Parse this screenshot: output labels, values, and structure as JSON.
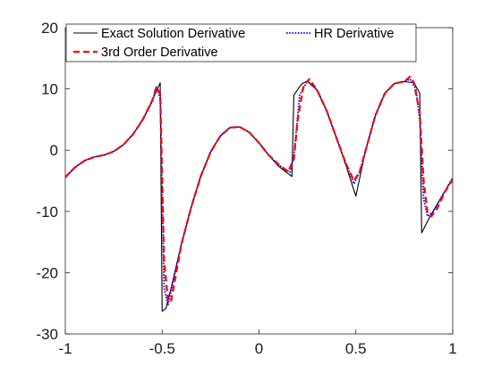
{
  "chart_data": {
    "type": "line",
    "xlim": [
      -1,
      1
    ],
    "ylim": [
      -30,
      20
    ],
    "x_ticks": [
      -1,
      -0.5,
      0,
      0.5,
      1
    ],
    "x_tick_labels": [
      "-1",
      "-0.5",
      "0",
      "0.5",
      "1"
    ],
    "y_ticks": [
      -30,
      -20,
      -10,
      0,
      10,
      20
    ],
    "y_tick_labels": [
      "-30",
      "-20",
      "-10",
      "0",
      "10",
      "20"
    ],
    "grid": false,
    "legend_position": "top",
    "series": [
      {
        "name": "Exact Solution Derivative",
        "color": "#000000",
        "style": "solid",
        "points": [
          [
            -1,
            -4.5
          ],
          [
            -0.95,
            -2.8
          ],
          [
            -0.9,
            -1.7
          ],
          [
            -0.85,
            -1.1
          ],
          [
            -0.8,
            -0.8
          ],
          [
            -0.75,
            -0.2
          ],
          [
            -0.7,
            0.9
          ],
          [
            -0.65,
            2.6
          ],
          [
            -0.6,
            5.0
          ],
          [
            -0.55,
            8.2
          ],
          [
            -0.51,
            11.0
          ],
          [
            -0.5,
            -26.3
          ],
          [
            -0.48,
            -25.8
          ],
          [
            -0.45,
            -22.0
          ],
          [
            -0.4,
            -15.2
          ],
          [
            -0.35,
            -9.3
          ],
          [
            -0.3,
            -4.2
          ],
          [
            -0.25,
            -0.3
          ],
          [
            -0.2,
            2.3
          ],
          [
            -0.15,
            3.7
          ],
          [
            -0.1,
            3.8
          ],
          [
            -0.05,
            2.9
          ],
          [
            0,
            1.2
          ],
          [
            0.05,
            -0.8
          ],
          [
            0.1,
            -2.6
          ],
          [
            0.17,
            -4.3
          ],
          [
            0.18,
            9.0
          ],
          [
            0.22,
            10.8
          ],
          [
            0.25,
            11.3
          ],
          [
            0.3,
            9.8
          ],
          [
            0.35,
            6.4
          ],
          [
            0.4,
            2.0
          ],
          [
            0.45,
            -2.6
          ],
          [
            0.5,
            -7.5
          ],
          [
            0.55,
            -0.1
          ],
          [
            0.6,
            5.6
          ],
          [
            0.65,
            9.3
          ],
          [
            0.7,
            10.9
          ],
          [
            0.75,
            11.2
          ],
          [
            0.8,
            11.0
          ],
          [
            0.83,
            9.3
          ],
          [
            0.84,
            -13.5
          ],
          [
            0.88,
            -11.0
          ],
          [
            0.93,
            -8.3
          ],
          [
            1,
            -4.6
          ]
        ]
      },
      {
        "name": "HR Derivative",
        "color": "#0000ff",
        "style": "dotted",
        "points": [
          [
            -1,
            -4.4
          ],
          [
            -0.95,
            -2.8
          ],
          [
            -0.9,
            -1.7
          ],
          [
            -0.85,
            -1.1
          ],
          [
            -0.8,
            -0.8
          ],
          [
            -0.75,
            -0.2
          ],
          [
            -0.7,
            0.9
          ],
          [
            -0.65,
            2.6
          ],
          [
            -0.6,
            5.0
          ],
          [
            -0.55,
            8.0
          ],
          [
            -0.53,
            10.3
          ],
          [
            -0.51,
            8.5
          ],
          [
            -0.49,
            -22.5
          ],
          [
            -0.47,
            -25.3
          ],
          [
            -0.44,
            -21.0
          ],
          [
            -0.4,
            -15.3
          ],
          [
            -0.35,
            -9.3
          ],
          [
            -0.3,
            -4.2
          ],
          [
            -0.25,
            -0.3
          ],
          [
            -0.2,
            2.3
          ],
          [
            -0.15,
            3.7
          ],
          [
            -0.1,
            3.8
          ],
          [
            -0.05,
            2.9
          ],
          [
            0,
            1.2
          ],
          [
            0.05,
            -0.8
          ],
          [
            0.1,
            -2.4
          ],
          [
            0.16,
            -3.6
          ],
          [
            0.18,
            -1.0
          ],
          [
            0.21,
            9.0
          ],
          [
            0.25,
            11.3
          ],
          [
            0.3,
            9.8
          ],
          [
            0.35,
            6.4
          ],
          [
            0.4,
            2.0
          ],
          [
            0.45,
            -2.3
          ],
          [
            0.49,
            -5.5
          ],
          [
            0.52,
            -3.5
          ],
          [
            0.55,
            -0.1
          ],
          [
            0.6,
            5.6
          ],
          [
            0.65,
            9.3
          ],
          [
            0.7,
            10.9
          ],
          [
            0.75,
            11.2
          ],
          [
            0.78,
            11.6
          ],
          [
            0.81,
            10.0
          ],
          [
            0.83,
            5.0
          ],
          [
            0.85,
            -8.0
          ],
          [
            0.87,
            -10.8
          ],
          [
            0.9,
            -10.0
          ],
          [
            0.95,
            -7.2
          ],
          [
            1,
            -4.5
          ]
        ]
      },
      {
        "name": "3rd Order Derivative",
        "color": "#ff0000",
        "style": "dashed",
        "points": [
          [
            -1,
            -4.4
          ],
          [
            -0.95,
            -2.8
          ],
          [
            -0.9,
            -1.7
          ],
          [
            -0.85,
            -1.1
          ],
          [
            -0.8,
            -0.8
          ],
          [
            -0.75,
            -0.2
          ],
          [
            -0.7,
            0.9
          ],
          [
            -0.65,
            2.6
          ],
          [
            -0.6,
            5.0
          ],
          [
            -0.55,
            8.2
          ],
          [
            -0.53,
            10.3
          ],
          [
            -0.51,
            9.2
          ],
          [
            -0.49,
            -18.0
          ],
          [
            -0.47,
            -24.5
          ],
          [
            -0.455,
            -24.8
          ],
          [
            -0.43,
            -20.5
          ],
          [
            -0.4,
            -15.3
          ],
          [
            -0.35,
            -9.3
          ],
          [
            -0.3,
            -4.2
          ],
          [
            -0.25,
            -0.3
          ],
          [
            -0.2,
            2.3
          ],
          [
            -0.15,
            3.7
          ],
          [
            -0.1,
            3.8
          ],
          [
            -0.05,
            2.9
          ],
          [
            0,
            1.2
          ],
          [
            0.05,
            -0.8
          ],
          [
            0.1,
            -2.3
          ],
          [
            0.15,
            -3.5
          ],
          [
            0.18,
            -1.5
          ],
          [
            0.2,
            5.0
          ],
          [
            0.23,
            10.5
          ],
          [
            0.26,
            11.6
          ],
          [
            0.3,
            9.8
          ],
          [
            0.35,
            6.4
          ],
          [
            0.4,
            2.0
          ],
          [
            0.45,
            -2.3
          ],
          [
            0.49,
            -5.0
          ],
          [
            0.52,
            -3.5
          ],
          [
            0.55,
            -0.1
          ],
          [
            0.6,
            5.6
          ],
          [
            0.65,
            9.3
          ],
          [
            0.7,
            10.9
          ],
          [
            0.75,
            11.2
          ],
          [
            0.78,
            12.0
          ],
          [
            0.8,
            11.0
          ],
          [
            0.83,
            6.0
          ],
          [
            0.85,
            -5.0
          ],
          [
            0.87,
            -10.3
          ],
          [
            0.89,
            -10.8
          ],
          [
            0.92,
            -9.5
          ],
          [
            0.96,
            -6.8
          ],
          [
            1,
            -4.8
          ]
        ]
      }
    ]
  }
}
